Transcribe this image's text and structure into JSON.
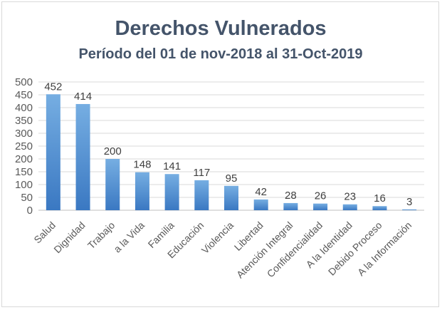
{
  "chart_data": {
    "type": "bar",
    "title": "Derechos Vulnerados",
    "subtitle": "Período del 01 de nov-2018 al 31-Oct-2019",
    "categories": [
      "Salud",
      "Dignidad",
      "Trabajo",
      "a la Vida",
      "Familia",
      "Educación",
      "Violencia",
      "Libertad",
      "Atención Integral",
      "Confidencialidad",
      "A la Identidad",
      "Debido Proceso",
      "A la Información"
    ],
    "values": [
      452,
      414,
      200,
      148,
      141,
      117,
      95,
      42,
      28,
      26,
      23,
      16,
      3
    ],
    "ylim": [
      0,
      500
    ],
    "yticks": [
      0,
      50,
      100,
      150,
      200,
      250,
      300,
      350,
      400,
      450,
      500
    ],
    "grid": true,
    "legend": "none",
    "colors": {
      "bar_top": "#6fa8dc",
      "bar_bottom": "#3a78c2",
      "grid": "#d9d9d9",
      "title": "#44546a"
    }
  }
}
